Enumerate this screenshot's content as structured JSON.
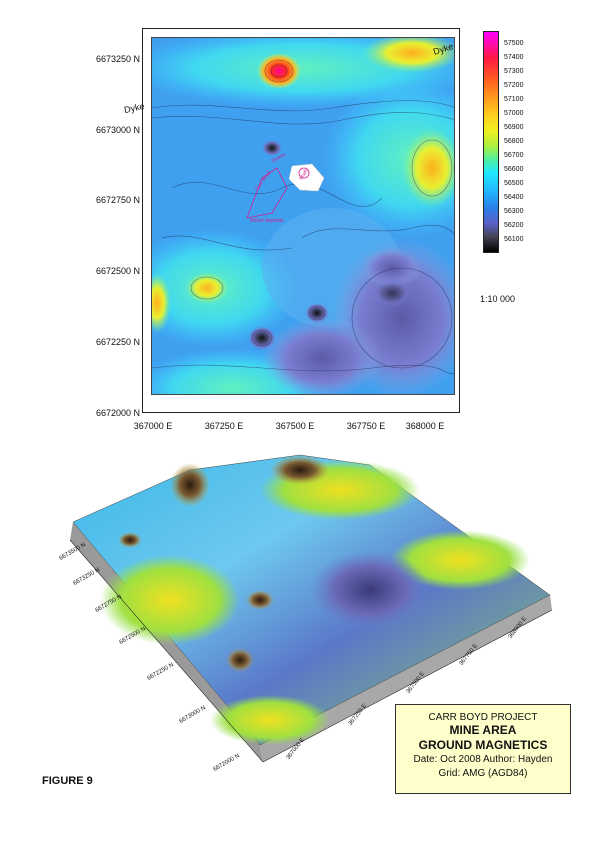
{
  "map2d": {
    "y_ticks": [
      "6673250 N",
      "6673000 N",
      "6672750 N",
      "6672500 N",
      "6672250 N",
      "6672000 N"
    ],
    "x_ticks": [
      "367000 E",
      "367250 E",
      "367500 E",
      "367750 E",
      "368000 E"
    ],
    "dyke_labels": [
      "Dyke",
      "Dyke"
    ],
    "annotations": [
      "Quarry",
      "Carr Boyd",
      "Nickel deposits",
      "Shaft"
    ]
  },
  "colorbar": {
    "labels": [
      "57500",
      "57400",
      "57300",
      "57200",
      "57100",
      "57000",
      "56900",
      "56800",
      "56700",
      "56600",
      "56500",
      "56400",
      "56300",
      "56200",
      "56100"
    ],
    "colors": {
      "high": "#ff00ff",
      "mid": "#f0f020",
      "low": "#000000"
    }
  },
  "scale": "1:10 000",
  "map3d": {
    "north_ticks": [
      "6673000 N",
      "6672750 N",
      "6672500 N",
      "6672250 N",
      "6672000 N",
      "6673250 N",
      "6673500 N"
    ],
    "east_ticks": [
      "367000 E",
      "367250 E",
      "367500 E",
      "367750 E",
      "368000 E"
    ]
  },
  "title_box": {
    "project": "CARR BOYD PROJECT",
    "line1": "MINE AREA",
    "line2": "GROUND MAGNETICS",
    "date_author": "Date: Oct 2008    Author: Hayden",
    "grid": "Grid: AMG (AGD84)"
  },
  "figure_label": "FIGURE 9"
}
